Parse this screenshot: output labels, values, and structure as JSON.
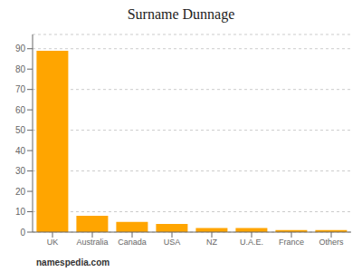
{
  "chart_data": {
    "type": "bar",
    "title": "Surname Dunnage",
    "categories": [
      "UK",
      "Australia",
      "Canada",
      "USA",
      "NZ",
      "U.A.E.",
      "France",
      "Others"
    ],
    "values": [
      89,
      8,
      5,
      4,
      2,
      2,
      1,
      1
    ],
    "color": "#FFA500",
    "ylim": [
      0,
      97
    ],
    "yticks": [
      0,
      10,
      20,
      30,
      40,
      50,
      60,
      70,
      80,
      90
    ],
    "grid": true,
    "annotations": [
      "namespedia.com"
    ]
  }
}
